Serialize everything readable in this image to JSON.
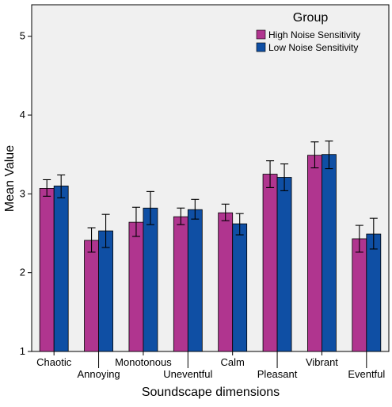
{
  "chart_data": {
    "type": "bar",
    "xlabel": "Soundscape dimensions",
    "ylabel": "Mean Value",
    "ylim": [
      1,
      5.4
    ],
    "yticks": [
      1,
      2,
      3,
      4,
      5
    ],
    "categories": [
      "Chaotic",
      "Annoying",
      "Monotonous",
      "Uneventful",
      "Calm",
      "Pleasant",
      "Vibrant",
      "Eventful"
    ],
    "legend": {
      "title": "Group",
      "placement": "top-right"
    },
    "series": [
      {
        "name": "High Noise Sensitivity",
        "color": "#b0358f",
        "values": [
          3.07,
          2.41,
          2.64,
          2.71,
          2.76,
          3.25,
          3.49,
          2.43
        ],
        "error_low": [
          2.97,
          2.26,
          2.46,
          2.61,
          2.66,
          3.08,
          3.33,
          2.26
        ],
        "error_high": [
          3.18,
          2.57,
          2.83,
          2.82,
          2.87,
          3.42,
          3.66,
          2.6
        ]
      },
      {
        "name": "Low Noise Sensitivity",
        "color": "#0f4fa4",
        "values": [
          3.1,
          2.53,
          2.82,
          2.8,
          2.62,
          3.21,
          3.5,
          2.49
        ],
        "error_low": [
          2.95,
          2.32,
          2.61,
          2.68,
          2.48,
          3.04,
          3.32,
          2.3
        ],
        "error_high": [
          3.24,
          2.74,
          3.03,
          2.93,
          2.75,
          3.38,
          3.67,
          2.69
        ]
      }
    ],
    "grid": false
  }
}
